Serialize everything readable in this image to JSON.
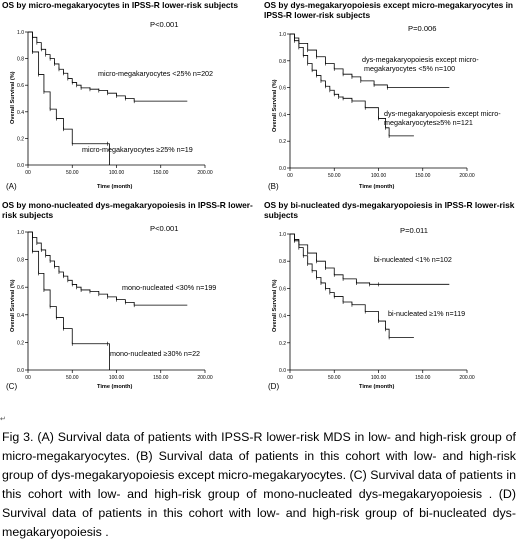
{
  "panels": [
    {
      "letter": "(A)",
      "title": "OS by micro-megakaryocytes  in IPSS-R lower-risk subjects",
      "pvalue": "P<0.001",
      "ylabel": "Overall Survival (%)",
      "xlabel": "Time (month)",
      "annotations": [
        "micro-megakaryocytes <25%  n=202",
        "micro-megakaryocytes ≥25%  n=19"
      ]
    },
    {
      "letter": "(B)",
      "title": "OS by dys-megakaryopoiesis except micro-megakaryocytes in IPSS-R lower-risk subjects",
      "pvalue": "P=0.006",
      "ylabel": "Overall Survival (%)",
      "xlabel": "Time (month)",
      "annotations": [
        "dys-megakaryopoiesis except micro-",
        "megakaryocytes <5%  n=100",
        "dys-megakaryopoiesis except micro-",
        "megakaryocytes≥5%  n=121"
      ]
    },
    {
      "letter": "(C)",
      "title": "OS by mono-nucleated  dys-megakaryopoiesis in IPSS-R lower-risk subjects",
      "pvalue": "P<0.001",
      "ylabel": "Overall Survival (%)",
      "xlabel": "Time (month)",
      "annotations": [
        "mono-nucleated <30% n=199",
        "mono-nucleated  ≥30%  n=22"
      ]
    },
    {
      "letter": "(D)",
      "title": "OS by bi-nucleated  dys-megakaryopoiesis in IPSS-R lower-risk subjects",
      "pvalue": "P=0.011",
      "ylabel": "Overall Survival (%)",
      "xlabel": "Time (month)",
      "annotations": [
        "bi-nucleated <1%  n=102",
        "bi-nucleated ≥1%  n=119"
      ]
    }
  ],
  "mark": "↵",
  "caption": "Fig 3. (A) Survival data of patients with IPSS-R lower-risk MDS in low- and high-risk group of micro-megakaryocytes. (B) Survival data of patients in this cohort with low- and high-risk group of dys-megakaryopoiesis except micro-megakaryocytes. (C) Survival data of patients in this cohort with low- and high-risk group of mono-nucleated dys-megakaryopoiesis . (D) Survival data of patients in this cohort with low- and high-risk group of bi-nucleated dys-megakaryopoiesis .",
  "chart_data": [
    {
      "type": "line",
      "title": "OS by micro-megakaryocytes  in IPSS-R lower-risk subjects",
      "xlabel": "Time (month)",
      "ylabel": "Overall Survival (%)",
      "xticks": [
        "00",
        "50.00",
        "100.00",
        "150.00",
        "200.00"
      ],
      "yticks": [
        "0.0",
        "0.2",
        "0.4",
        "0.6",
        "0.8",
        "1.0"
      ],
      "xlim": [
        0,
        200
      ],
      "ylim": [
        0,
        1
      ],
      "series": [
        {
          "name": "micro-megakaryocytes <25%  n=202",
          "x": [
            0,
            5,
            10,
            15,
            20,
            25,
            30,
            35,
            40,
            45,
            50,
            55,
            60,
            70,
            80,
            90,
            100,
            110,
            120,
            180
          ],
          "y": [
            1.0,
            0.96,
            0.92,
            0.87,
            0.83,
            0.8,
            0.76,
            0.72,
            0.69,
            0.65,
            0.62,
            0.6,
            0.58,
            0.57,
            0.56,
            0.54,
            0.52,
            0.5,
            0.48,
            0.48
          ]
        },
        {
          "name": "micro-megakaryocytes ≥25%  n=19",
          "x": [
            0,
            5,
            12,
            18,
            25,
            32,
            40,
            50,
            90,
            92
          ],
          "y": [
            1.0,
            0.85,
            0.68,
            0.55,
            0.42,
            0.35,
            0.27,
            0.16,
            0.16,
            0.0
          ]
        }
      ]
    },
    {
      "type": "line",
      "title": "OS by dys-megakaryopoiesis except micro-megakaryocytes in IPSS-R lower-risk subjects",
      "xlabel": "Time (month)",
      "ylabel": "Overall Survival (%)",
      "xticks": [
        "00",
        "50.00",
        "100.00",
        "150.00",
        "200.00"
      ],
      "yticks": [
        "0.0",
        "0.2",
        "0.4",
        "0.6",
        "0.8",
        "1.0"
      ],
      "xlim": [
        0,
        200
      ],
      "ylim": [
        0,
        1
      ],
      "series": [
        {
          "name": "dys-megakaryopoiesis except micro-megakaryocytes <5%  n=100",
          "x": [
            0,
            5,
            10,
            20,
            30,
            40,
            50,
            60,
            70,
            80,
            95,
            110,
            180
          ],
          "y": [
            1.0,
            0.97,
            0.93,
            0.88,
            0.83,
            0.78,
            0.74,
            0.7,
            0.68,
            0.65,
            0.62,
            0.6,
            0.6
          ]
        },
        {
          "name": "dys-megakaryopoiesis except micro-megakaryocytes≥5%  n=121",
          "x": [
            0,
            5,
            10,
            15,
            20,
            25,
            30,
            35,
            40,
            45,
            50,
            55,
            60,
            70,
            85,
            100,
            108,
            112,
            140
          ],
          "y": [
            1.0,
            0.95,
            0.9,
            0.84,
            0.78,
            0.73,
            0.69,
            0.65,
            0.61,
            0.58,
            0.55,
            0.53,
            0.52,
            0.5,
            0.45,
            0.37,
            0.3,
            0.24,
            0.24
          ]
        }
      ]
    },
    {
      "type": "line",
      "title": "OS by mono-nucleated  dys-megakaryopoiesis in IPSS-R lower-risk subjects",
      "xlabel": "Time (month)",
      "ylabel": "Overall Survival (%)",
      "xticks": [
        "00",
        "50.00",
        "100.00",
        "150.00",
        "200.00"
      ],
      "yticks": [
        "0.0",
        "0.2",
        "0.4",
        "0.6",
        "0.8",
        "1.0"
      ],
      "xlim": [
        0,
        200
      ],
      "ylim": [
        0,
        1
      ],
      "series": [
        {
          "name": "mono-nucleated <30% n=199",
          "x": [
            0,
            5,
            10,
            15,
            20,
            25,
            30,
            35,
            40,
            45,
            50,
            55,
            60,
            70,
            80,
            90,
            100,
            110,
            120,
            180
          ],
          "y": [
            1.0,
            0.96,
            0.92,
            0.87,
            0.83,
            0.79,
            0.75,
            0.71,
            0.68,
            0.65,
            0.62,
            0.6,
            0.58,
            0.57,
            0.55,
            0.53,
            0.51,
            0.49,
            0.47,
            0.47
          ]
        },
        {
          "name": "mono-nucleated  ≥30%  n=22",
          "x": [
            0,
            5,
            12,
            18,
            25,
            32,
            40,
            50,
            90,
            92
          ],
          "y": [
            1.0,
            0.86,
            0.7,
            0.58,
            0.46,
            0.38,
            0.3,
            0.19,
            0.19,
            0.0
          ]
        }
      ]
    },
    {
      "type": "line",
      "title": "OS by bi-nucleated  dys-megakaryopoiesis in IPSS-R lower-risk subjects",
      "xlabel": "Time (month)",
      "ylabel": "Overall Survival (%)",
      "xticks": [
        "00",
        "50.00",
        "100.00",
        "150.00",
        "200.00"
      ],
      "yticks": [
        "0.0",
        "0.2",
        "0.4",
        "0.6",
        "0.8",
        "1.0"
      ],
      "xlim": [
        0,
        200
      ],
      "ylim": [
        0,
        1
      ],
      "series": [
        {
          "name": "bi-nucleated <1%  n=102",
          "x": [
            0,
            5,
            10,
            20,
            30,
            40,
            50,
            60,
            75,
            90,
            100,
            180
          ],
          "y": [
            1.0,
            0.96,
            0.92,
            0.86,
            0.8,
            0.75,
            0.7,
            0.67,
            0.64,
            0.63,
            0.63,
            0.63
          ]
        },
        {
          "name": "bi-nucleated ≥1%  n=119",
          "x": [
            0,
            5,
            10,
            15,
            20,
            25,
            30,
            35,
            40,
            45,
            50,
            60,
            70,
            85,
            100,
            108,
            112,
            140
          ],
          "y": [
            1.0,
            0.95,
            0.9,
            0.84,
            0.78,
            0.73,
            0.68,
            0.64,
            0.6,
            0.57,
            0.54,
            0.5,
            0.48,
            0.43,
            0.36,
            0.3,
            0.24,
            0.24
          ]
        }
      ]
    }
  ]
}
